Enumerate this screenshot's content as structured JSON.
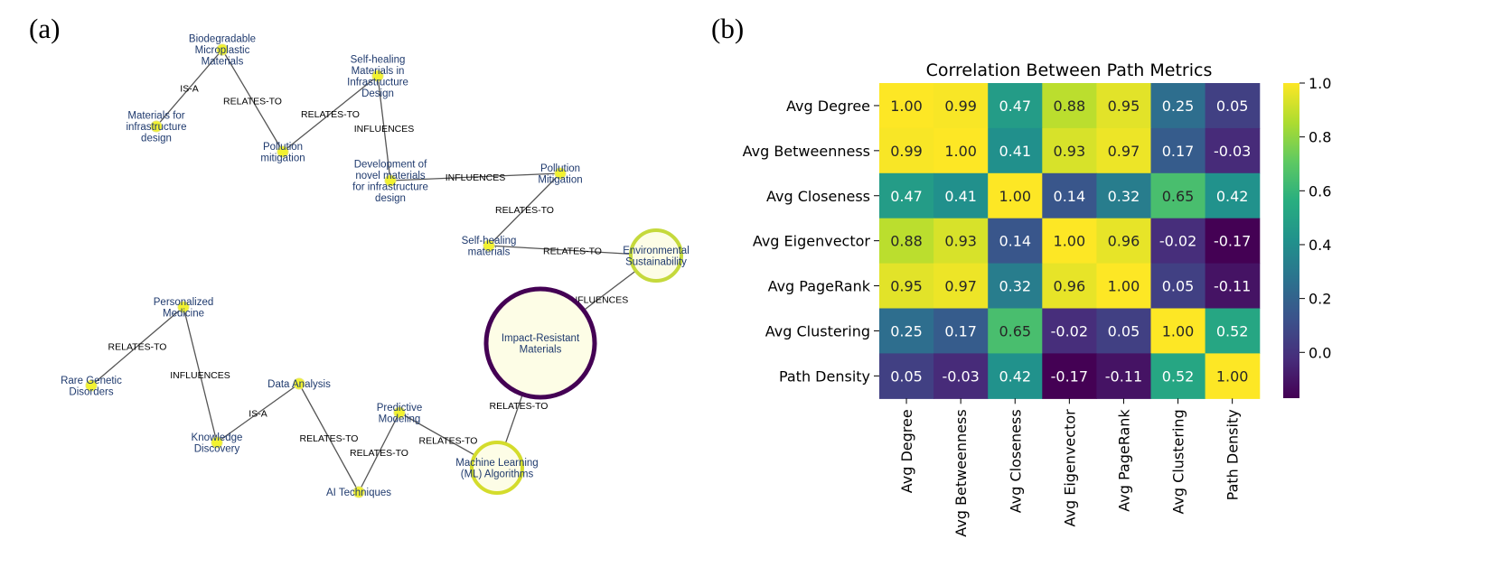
{
  "panels": {
    "a_label": "(a)",
    "b_label": "(b)"
  },
  "graph": {
    "nodes": [
      {
        "id": "n1",
        "label": [
          "Biodegradable",
          "Microplastic",
          "Materials"
        ],
        "size": "small",
        "color": "#f2f230"
      },
      {
        "id": "n2",
        "label": [
          "Materials for",
          "infrastructure",
          "design"
        ],
        "size": "small",
        "color": "#f2f230"
      },
      {
        "id": "n3",
        "label": [
          "Pollution",
          "mitigation"
        ],
        "size": "small",
        "color": "#f2f230"
      },
      {
        "id": "n4",
        "label": [
          "Self-healing",
          "Materials in",
          "Infrastructure",
          "Design"
        ],
        "size": "small",
        "color": "#f2f230"
      },
      {
        "id": "n5",
        "label": [
          "Development of",
          "novel materials",
          "for infrastructure",
          "design"
        ],
        "size": "small",
        "color": "#f2f230"
      },
      {
        "id": "n6",
        "label": [
          "Pollution",
          "Mitigation"
        ],
        "size": "small",
        "color": "#f2f230"
      },
      {
        "id": "n7",
        "label": [
          "Self-healing",
          "materials"
        ],
        "size": "small",
        "color": "#f2f230"
      },
      {
        "id": "n8",
        "label": [
          "Environmental",
          "Sustainability"
        ],
        "size": "medium",
        "color": "#c5d93c"
      },
      {
        "id": "n9",
        "label": [
          "Impact-Resistant",
          "Materials"
        ],
        "size": "large",
        "color": "#440154"
      },
      {
        "id": "n10",
        "label": [
          "Personalized",
          "Medicine"
        ],
        "size": "small",
        "color": "#f2f230"
      },
      {
        "id": "n11",
        "label": [
          "Rare Genetic",
          "Disorders"
        ],
        "size": "small",
        "color": "#f2f230"
      },
      {
        "id": "n12",
        "label": [
          "Knowledge",
          "Discovery"
        ],
        "size": "small",
        "color": "#f2f230"
      },
      {
        "id": "n13",
        "label": [
          "Data Analysis"
        ],
        "size": "small",
        "color": "#f2f230"
      },
      {
        "id": "n14",
        "label": [
          "AI Techniques"
        ],
        "size": "small",
        "color": "#f2f230"
      },
      {
        "id": "n15",
        "label": [
          "Predictive",
          "Modeling"
        ],
        "size": "small",
        "color": "#f2f230"
      },
      {
        "id": "n16",
        "label": [
          "Machine Learning",
          "(ML) Algorithms"
        ],
        "size": "medium",
        "color": "#d4dc2c"
      }
    ],
    "edges": [
      {
        "from": "n1",
        "to": "n2",
        "label": "IS-A"
      },
      {
        "from": "n1",
        "to": "n3",
        "label": "RELATES-TO"
      },
      {
        "from": "n3",
        "to": "n4",
        "label": "RELATES-TO"
      },
      {
        "from": "n4",
        "to": "n5",
        "label": "INFLUENCES"
      },
      {
        "from": "n5",
        "to": "n6",
        "label": "INFLUENCES"
      },
      {
        "from": "n6",
        "to": "n7",
        "label": "RELATES-TO"
      },
      {
        "from": "n7",
        "to": "n8",
        "label": "RELATES-TO"
      },
      {
        "from": "n8",
        "to": "n9",
        "label": "INFLUENCES"
      },
      {
        "from": "n10",
        "to": "n11",
        "label": "RELATES-TO"
      },
      {
        "from": "n10",
        "to": "n12",
        "label": "INFLUENCES"
      },
      {
        "from": "n12",
        "to": "n13",
        "label": "IS-A"
      },
      {
        "from": "n13",
        "to": "n14",
        "label": "RELATES-TO"
      },
      {
        "from": "n14",
        "to": "n15",
        "label": "RELATES-TO"
      },
      {
        "from": "n15",
        "to": "n16",
        "label": "RELATES-TO"
      },
      {
        "from": "n9",
        "to": "n16",
        "label": "RELATES-TO"
      }
    ]
  },
  "chart_data": {
    "type": "heatmap",
    "title": "Correlation Between Path Metrics",
    "rows": [
      "Avg Degree",
      "Avg Betweenness",
      "Avg Closeness",
      "Avg Eigenvector",
      "Avg PageRank",
      "Avg Clustering",
      "Path Density"
    ],
    "cols": [
      "Avg Degree",
      "Avg Betweenness",
      "Avg Closeness",
      "Avg Eigenvector",
      "Avg PageRank",
      "Avg Clustering",
      "Path Density"
    ],
    "values": [
      [
        1.0,
        0.99,
        0.47,
        0.88,
        0.95,
        0.25,
        0.05
      ],
      [
        0.99,
        1.0,
        0.41,
        0.93,
        0.97,
        0.17,
        -0.03
      ],
      [
        0.47,
        0.41,
        1.0,
        0.14,
        0.32,
        0.65,
        0.42
      ],
      [
        0.88,
        0.93,
        0.14,
        1.0,
        0.96,
        -0.02,
        -0.17
      ],
      [
        0.95,
        0.97,
        0.32,
        0.96,
        1.0,
        0.05,
        -0.11
      ],
      [
        0.25,
        0.17,
        0.65,
        -0.02,
        0.05,
        1.0,
        0.52
      ],
      [
        0.05,
        -0.03,
        0.42,
        -0.17,
        -0.11,
        0.52,
        1.0
      ]
    ],
    "colormap": "viridis",
    "vmin": -0.17,
    "vmax": 1.0,
    "colorbar_ticks": [
      "1.0",
      "0.8",
      "0.6",
      "0.4",
      "0.2",
      "0.0"
    ],
    "colorbar_tick_values": [
      1.0,
      0.8,
      0.6,
      0.4,
      0.2,
      0.0
    ]
  }
}
